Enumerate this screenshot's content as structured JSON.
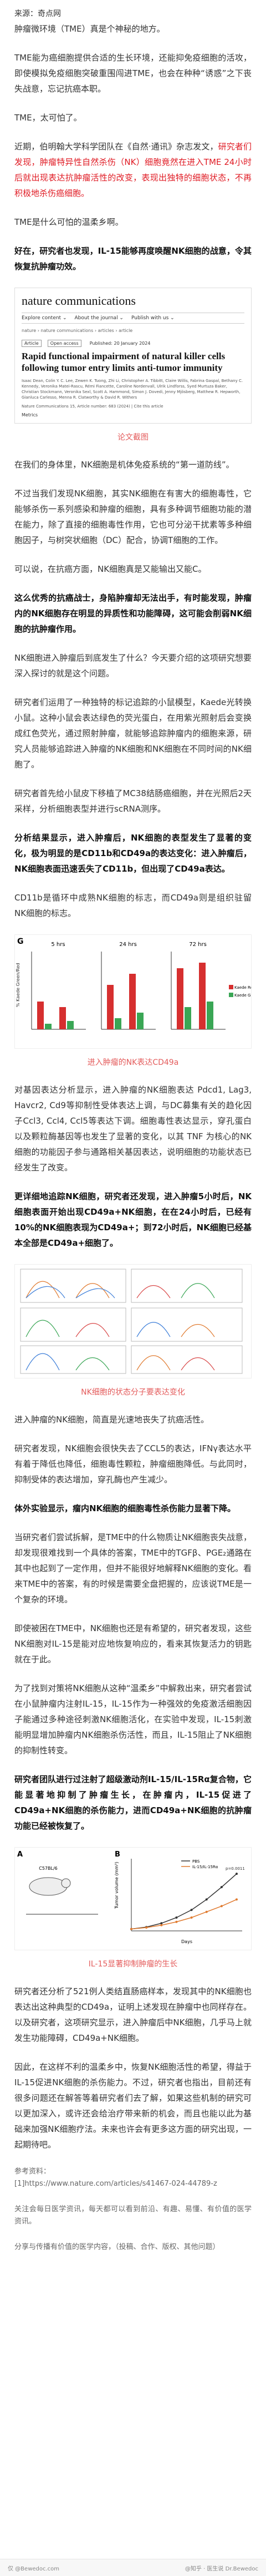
{
  "header": {
    "source": "来源：奇点网",
    "intro": "肿瘤微环境（TME）真是个神秘的地方。"
  },
  "paras": {
    "p1": "TME能为癌细胞提供合适的生长环境，还能抑免疫细胞的活攻，即使模拟免疫细胞突破重围闯进TME，也会在种种“诱惑”之下丧失战意，忘记抗癌本职。",
    "p2": "TME，太可怕了。",
    "p3a": "近期，伯明翰大学科学团队在《自然·通讯》杂志发文，",
    "p3b": "研究者们发现，肿瘤特异性自然杀伤（NK）细胞竟然在进入TME 24小时后就出现表达抗肿瘤活性的改变，表现出独特的细胞状态，不再积极地杀伤癌细胞。",
    "p4": "TME是什么可怕的温柔乡啊。",
    "p5a": "好在，研究者也发现，",
    "p5b": "IL-15能够再度唤醒NK细胞的战意，令其恢复抗肿瘤功效。"
  },
  "paper": {
    "journal": "nature communications",
    "nav": [
      "Explore content ⌄",
      "About the journal ⌄",
      "Publish with us ⌄"
    ],
    "crumb": "nature › nature communications › articles › article",
    "badges": [
      "Article",
      "Open access",
      "Published: 20 January 2024"
    ],
    "title": "Rapid functional impairment of natural killer cells following tumor entry limits anti-tumor immunity",
    "authors": "Isaac Dean, Colin Y. C. Lee, Zewen K. Tuong, Zhi Li, Christopher A. Tibbitt, Claire Willis, Fabrina Gaspal, Bethany C. Kennedy, Veronika Matei-Rascu, Rémi Fiancette, Caroline Nordenvall, Ulrik Lindforss, Syed Murtuza Baker, Christian Stockmann, Veronika Sexl, Scott A. Hammond, Simon J. Dovedi, Jenny Mjösberg, Matthew R. Hepworth, Gianluca Carlesso, Menna R. Clatworthy & David R. Withers",
    "citation": "Nature Communications 15, Article number: 683 (2024) | Cite this article",
    "metrics": "Metrics"
  },
  "cap1": "论文截图",
  "body1": [
    "在我们的身体里，NK细胞是机体免疫系统的“第一道防线”。",
    "不过当我们发现NK细胞，其实NK细胞在有害大的细胞毒性，它能够杀伤一系列感染和肿瘤的细胞，具有多种调节细胞功能的潜在能力，除了直接的细胞毒性作用，它也可分泌干扰素等多种细胞因子，与树突状细胞（DC）配合，协调T细胞的工作。",
    "可以说，在抗癌方面，NK细胞真是又能输出又能C。",
    "这么优秀的抗癌战士，身陷肿瘤却无法出手，有时能发现，肿瘤内的NK细胞存在明显的异质性和功能障碍，这可能会削弱NK细胞的抗肿瘤作用。",
    "NK细胞进入肿瘤后到底发生了什么？今天要介绍的这项研究想要深入探讨的就是这个问题。",
    "研究者们运用了一种独特的标记追踪的小鼠模型，Kaede光转换小鼠。这种小鼠会表达绿色的荧光蛋白，在用紫光照射后会变换成红色荧光，通过照射肿瘤，就能够追踪肿瘤内的细胞来源，研究人员能够追踪进入肿瘤的NK细胞和NK细胞在不同时间的NK细胞了。",
    "研究者首先给小鼠皮下移植了MC38结肠癌细胞，并在光照后2天采样，分析细胞表型并进行scRNA测序。",
    "分析结果显示，进入肿瘤后，NK细胞的表型发生了显著的变化，极为明显的是CD11b和CD49a的表达变化：进入肿瘤后，NK细胞表面迅速丢失了CD11b，但出现了CD49a表达。",
    "CD11b是循环中成熟NK细胞的标志，而CD49a则是组织驻留NK细胞的标志。"
  ],
  "figG": {
    "label": "G",
    "panels": [
      "5 hrs",
      "24 hrs",
      "72 hrs"
    ],
    "ylabel": "% Kaede Green/Red",
    "legend": [
      "Kaede Red",
      "Kaede Green"
    ]
  },
  "cap2": "进入肿瘤的NK表达CD49a",
  "body2": [
    "对基因表达分析显示，进入肿瘤的NK细胞表达 Pdcd1, Lag3, Havcr2, Cd9等抑制性受体表达上调，与DC募集有关的趋化因子Ccl3, Ccl4, Ccl5等表达下调。细胞毒性表达显示，穿孔蛋白以及颗粒酶基因等也发生了显著的变化，以其 TNF 为核心的NK细胞的功能因子参与通路相关基因表达，说明细胞的功能状态已经发生了改变。",
    "更详细地追踪NK细胞，研究者还发现，进入肿瘤5小时后，NK细胞表面开始出现CD49a+NK细胞，在在24小时后，已经有10%的NK细胞表现为CD49a+；到72小时后，NK细胞已经基本全部是CD49a+细胞了。"
  ],
  "cap3": "NK细胞的状态分子要表达变化",
  "body3": [
    "进入肿瘤的NK细胞，简直是光速地丧失了抗癌活性。",
    "研究者发现，NK细胞会很快失去了CCL5的表达，IFNγ表达水平有着于降低也降低，细胞毒性颗粒，肿瘤细胞降低。与此同时，抑制受体的表达增加，穿孔酶也产生减少。",
    "体外实验显示，瘤内NK细胞的细胞毒性杀伤能力显著下降。",
    "当研究者们尝试拆解，是TME中的什么物质让NK细胞丧失战意，却发现很难找到一个具体的答案，TME中的TGFβ、PGE₂通路在其中也起到了一定作用，但并不能很好地解释NK细胞的变化。看来TME中的答案，有的时候是需要全盘把握的，应该说TME是一个复杂的环境。",
    "即使被困在TME中，NK细胞也还是有希望的，研究者发现，这些NK细胞对IL-15是能对应地恢复响应的，看来其恢复活力的钥匙就在于此。",
    "为了找到对策将NK细胞从这种“温柔乡”中解救出来，研究者尝试在小鼠肿瘤内注射IL-15，IL-15作为一种强效的免疫激活细胞因子能通过多种途径刺激NK细胞活化，在实验中发现，IL-15刺激能明显增加肿瘤内NK细胞杀伤活性，而且，IL-15阻止了NK细胞的抑制性转变。",
    "研究者团队进行过注射了超级激动剂IL-15/IL-15Rα复合物，它能显著地抑制了肿瘤生长，在肿瘤内，IL-15促进了CD49a+NK细胞的杀伤能力，进而CD49a+NK细胞的抗肿瘤功能已经被恢复了。"
  ],
  "figChart": {
    "label": "B",
    "label_a": "A",
    "mouse": "C57BL/6",
    "legend": [
      "PBS",
      "IL-15/IL-15Rα"
    ],
    "ylabel": "Tumor volume (mm³)",
    "xlabel": "Days",
    "annot": "p=0.0011"
  },
  "chart_data": {
    "type": "line",
    "title": "",
    "xlabel": "Days",
    "ylabel": "Tumor volume (mm³)",
    "x": [
      0,
      2,
      4,
      6,
      8,
      10,
      12,
      14
    ],
    "series": [
      {
        "name": "PBS",
        "values": [
          20,
          40,
          80,
          140,
          220,
          330,
          460,
          600
        ]
      },
      {
        "name": "IL-15/IL-15Rα",
        "values": [
          20,
          35,
          60,
          95,
          140,
          200,
          260,
          330
        ]
      }
    ],
    "ylim": [
      0,
      700
    ]
  },
  "cap4": "IL-15显著抑制肿瘤的生长",
  "body4": [
    "研究者还分析了521例人类结直肠癌样本，发现其中的NK细胞也表达出这种典型的CD49a，证明上述发现在肿瘤中也同样存在。以及研究者，这项研究显示，进入肿瘤后中NK细胞，几乎马上就发生功能障碍，CD49a+NK细胞。",
    "因此，在这样不利的温柔乡中，恢复NK细胞活性的希望，得益于IL-15促进NK细胞的杀伤能力。不过，研究者也指出，目前还有很多问题还在解答等着研究者们去了解，如果这些机制的研究可以更加深入，或许还会给治疗带来新的机会，而且也能以此为基础来加强NK细胞疗法。未来也许会有更多这方面的研究出现，一起期待吧。"
  ],
  "refs": {
    "title": "参考资料：",
    "items": [
      "[1]https://www.nature.com/articles/s41467-024-44789-z"
    ]
  },
  "closing": [
    "关注会每日医学资讯，每天都可以看到前沿、有趣、易懂、有价值的医学资讯。",
    "分享与传播有价值的医学内容，（投稿、合作、版权、其他问题）"
  ],
  "footer": {
    "left": "仅 @Bewedoc.com",
    "right": "@知乎 · 医生说 Dr.Bewedoc"
  }
}
